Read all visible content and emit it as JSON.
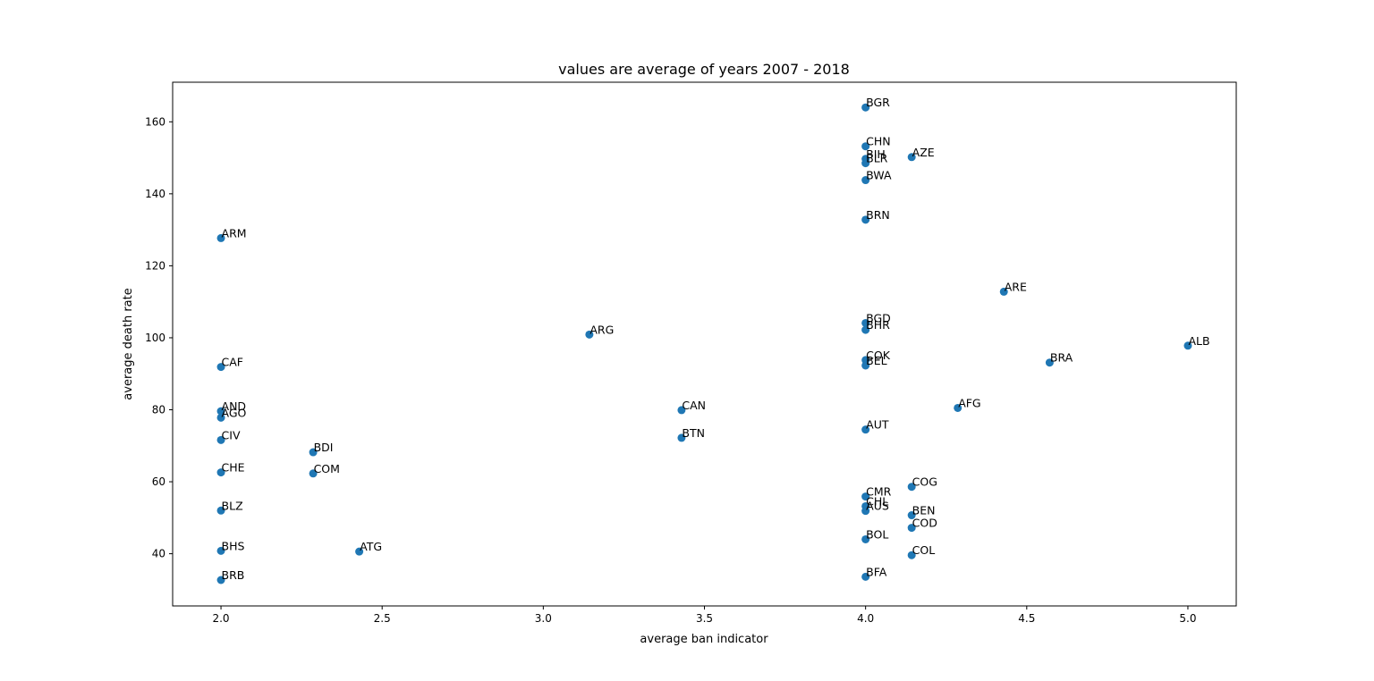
{
  "chart_data": {
    "type": "scatter",
    "title": "values are average of years 2007 - 2018",
    "xlabel": "average ban indicator",
    "ylabel": "average death rate",
    "xlim": [
      1.85,
      5.15
    ],
    "ylim": [
      25.5,
      171
    ],
    "xticks": [
      2.0,
      2.5,
      3.0,
      3.5,
      4.0,
      4.5,
      5.0
    ],
    "xtick_labels": [
      "2.0",
      "2.5",
      "3.0",
      "3.5",
      "4.0",
      "4.5",
      "5.0"
    ],
    "yticks": [
      40,
      60,
      80,
      100,
      120,
      140,
      160
    ],
    "ytick_labels": [
      "40",
      "60",
      "80",
      "100",
      "120",
      "140",
      "160"
    ],
    "grid": false,
    "marker_color": "#1f77b4",
    "points": [
      {
        "label": "BGR",
        "x": 4.0,
        "y": 164.0
      },
      {
        "label": "CHN",
        "x": 4.0,
        "y": 153.2
      },
      {
        "label": "BIH",
        "x": 4.0,
        "y": 149.7
      },
      {
        "label": "BLR",
        "x": 4.0,
        "y": 148.5
      },
      {
        "label": "AZE",
        "x": 4.143,
        "y": 150.2
      },
      {
        "label": "BWA",
        "x": 4.0,
        "y": 143.8
      },
      {
        "label": "BRN",
        "x": 4.0,
        "y": 132.8
      },
      {
        "label": "ARM",
        "x": 2.0,
        "y": 127.7
      },
      {
        "label": "ARE",
        "x": 4.429,
        "y": 112.8
      },
      {
        "label": "BGD",
        "x": 4.0,
        "y": 104.1
      },
      {
        "label": "BHR",
        "x": 4.0,
        "y": 102.2
      },
      {
        "label": "ARG",
        "x": 3.143,
        "y": 100.9
      },
      {
        "label": "ALB",
        "x": 5.0,
        "y": 97.8
      },
      {
        "label": "CAF",
        "x": 2.0,
        "y": 91.9
      },
      {
        "label": "COK",
        "x": 4.0,
        "y": 93.8
      },
      {
        "label": "BEL",
        "x": 4.0,
        "y": 92.3
      },
      {
        "label": "BRA",
        "x": 4.571,
        "y": 93.1
      },
      {
        "label": "AND",
        "x": 2.0,
        "y": 79.6
      },
      {
        "label": "AGO",
        "x": 2.0,
        "y": 77.8
      },
      {
        "label": "CAN",
        "x": 3.429,
        "y": 79.9
      },
      {
        "label": "AFG",
        "x": 4.286,
        "y": 80.5
      },
      {
        "label": "AUT",
        "x": 4.0,
        "y": 74.5
      },
      {
        "label": "CIV",
        "x": 2.0,
        "y": 71.6
      },
      {
        "label": "BTN",
        "x": 3.429,
        "y": 72.2
      },
      {
        "label": "BDI",
        "x": 2.286,
        "y": 68.2
      },
      {
        "label": "CHE",
        "x": 2.0,
        "y": 62.6
      },
      {
        "label": "COM",
        "x": 2.286,
        "y": 62.3
      },
      {
        "label": "COG",
        "x": 4.143,
        "y": 58.6
      },
      {
        "label": "CMR",
        "x": 4.0,
        "y": 55.9
      },
      {
        "label": "CHL",
        "x": 4.0,
        "y": 53.2
      },
      {
        "label": "AUS",
        "x": 4.0,
        "y": 51.9
      },
      {
        "label": "BLZ",
        "x": 2.0,
        "y": 52.0
      },
      {
        "label": "BEN",
        "x": 4.143,
        "y": 50.7
      },
      {
        "label": "COD",
        "x": 4.143,
        "y": 47.2
      },
      {
        "label": "BOL",
        "x": 4.0,
        "y": 44.0
      },
      {
        "label": "BHS",
        "x": 2.0,
        "y": 40.8
      },
      {
        "label": "ATG",
        "x": 2.429,
        "y": 40.6
      },
      {
        "label": "COL",
        "x": 4.143,
        "y": 39.6
      },
      {
        "label": "BFA",
        "x": 4.0,
        "y": 33.6
      },
      {
        "label": "BRB",
        "x": 2.0,
        "y": 32.7
      }
    ]
  }
}
